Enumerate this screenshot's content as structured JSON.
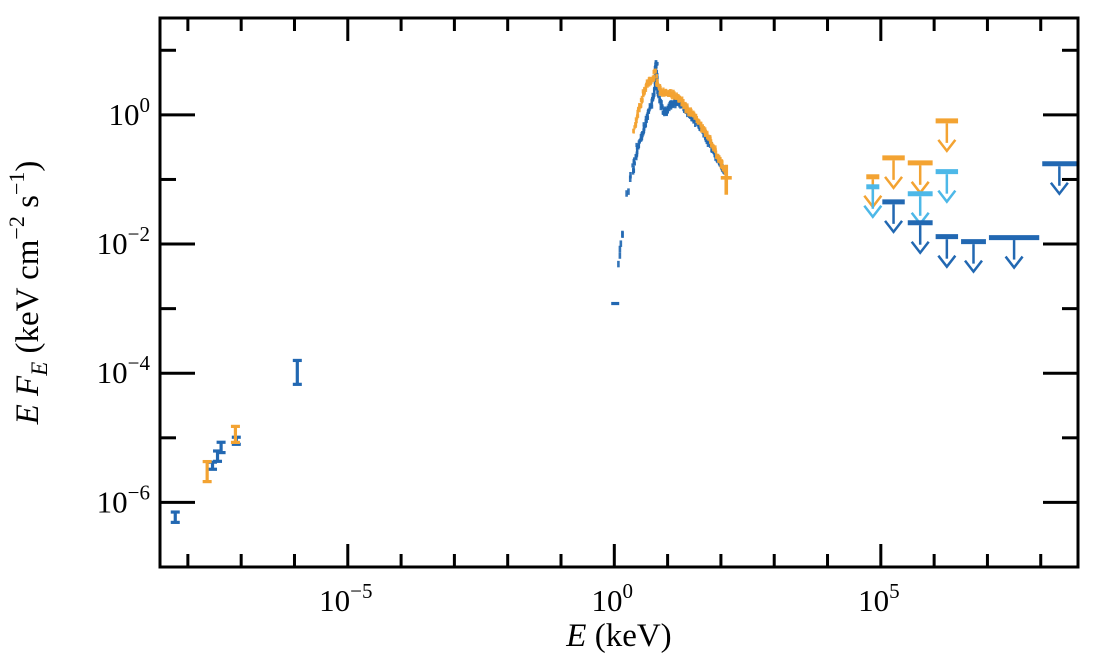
{
  "chart_data": {
    "type": "scatter",
    "title": "",
    "xlabel_tokens": [
      {
        "text": "E",
        "style": "italic"
      },
      {
        "text": " (keV)",
        "style": "normal"
      }
    ],
    "ylabel_tokens": [
      {
        "text": "E F",
        "style": "italic"
      },
      {
        "text": "E",
        "style": "italic_sub"
      },
      {
        "text": " (keV cm",
        "style": "normal"
      },
      {
        "text": "−2",
        "style": "sup"
      },
      {
        "text": " s",
        "style": "normal"
      },
      {
        "text": "−1",
        "style": "sup"
      },
      {
        "text": ")",
        "style": "normal"
      }
    ],
    "xscale": "log",
    "yscale": "log",
    "xlim": [
      3e-09,
      500000000.0
    ],
    "ylim": [
      1e-07,
      31.6
    ],
    "grid": false,
    "legend": null,
    "x_ticks": {
      "minor_exponents": [
        -8,
        -7,
        -6,
        -5,
        -4,
        -3,
        -2,
        -1,
        0,
        1,
        2,
        3,
        4,
        5,
        6,
        7,
        8
      ],
      "major_exponents": [
        -5,
        0,
        5
      ],
      "labeled_exponents": [
        -5,
        0,
        5
      ]
    },
    "y_ticks": {
      "minor_exponents": [
        -6,
        -5,
        -4,
        -3,
        -2,
        -1,
        0,
        1
      ],
      "major_exponents": [
        0,
        -2,
        -4,
        -6
      ],
      "labeled_exponents": [
        0,
        -2,
        -4,
        -6
      ]
    },
    "colors": {
      "blue": "#2268b2",
      "orange": "#f3a332",
      "lightblue": "#4db8e8",
      "axis": "#000000",
      "background": "#ffffff"
    },
    "series": [
      {
        "name": "radio-errorbars-blue",
        "kind": "errorbar",
        "color_key": "blue",
        "points": [
          {
            "E": 5.8e-09,
            "F": 5.9e-07,
            "err_dex": 0.08
          },
          {
            "E": 2.9e-08,
            "F": 3.7e-06,
            "err_dex": 0.055
          },
          {
            "E": 3.6e-08,
            "F": 5.2e-06,
            "err_dex": 0.08
          },
          {
            "E": 4.2e-08,
            "F": 7.1e-06,
            "err_dex": 0.08
          },
          {
            "E": 8.1e-08,
            "F": 9e-06,
            "err_dex": 0.055
          },
          {
            "E": 1.13e-06,
            "F": 0.000103,
            "err_dex": 0.185
          }
        ]
      },
      {
        "name": "radio-errorbars-orange",
        "kind": "errorbar",
        "color_key": "orange",
        "points": [
          {
            "E": 2.3e-08,
            "F": 3e-06,
            "err_dex": 0.155
          },
          {
            "E": 7.8e-08,
            "F": 1.13e-05,
            "err_dex": 0.124
          }
        ]
      },
      {
        "name": "xray-spectrum-blue",
        "kind": "cloud",
        "color_key": "blue",
        "detached_point": {
          "E": 1.04,
          "F": 0.0012
        },
        "spike": {
          "E": 6.1,
          "F_base": 2.6,
          "F_top": 6.6,
          "n_points": 55
        },
        "curve": [
          [
            1.24,
            0.0053
          ],
          [
            1.35,
            0.0105
          ],
          [
            1.48,
            0.0207
          ],
          [
            1.61,
            0.0366
          ],
          [
            1.75,
            0.056
          ],
          [
            1.91,
            0.08
          ],
          [
            2.18,
            0.136
          ],
          [
            2.48,
            0.224
          ],
          [
            2.94,
            0.369
          ],
          [
            3.5,
            0.586
          ],
          [
            4.16,
            0.931
          ],
          [
            4.94,
            1.48
          ],
          [
            5.62,
            2.19
          ],
          [
            6.01,
            2.91
          ],
          [
            6.41,
            2.61
          ],
          [
            6.98,
            1.83
          ],
          [
            7.96,
            1.19
          ],
          [
            9.06,
            1.11
          ],
          [
            10.3,
            1.28
          ],
          [
            12.2,
            1.48
          ],
          [
            14.6,
            1.59
          ],
          [
            17.3,
            1.48
          ],
          [
            20.6,
            1.28
          ],
          [
            24.4,
            1.07
          ],
          [
            29.0,
            0.899
          ],
          [
            34.5,
            0.78
          ],
          [
            39.4,
            0.676
          ],
          [
            48.8,
            0.508
          ],
          [
            60.5,
            0.369
          ],
          [
            75.2,
            0.259
          ],
          [
            93.3,
            0.181
          ],
          [
            111,
            0.141
          ],
          [
            126,
            0.118
          ]
        ]
      },
      {
        "name": "xray-spectrum-orange",
        "kind": "cloud",
        "color_key": "orange",
        "end_cross": {
          "E": 126,
          "F": 0.106,
          "F_lo": 0.058,
          "F_hi": 0.169
        },
        "curve": [
          [
            2.37,
            0.586
          ],
          [
            2.7,
            1.0
          ],
          [
            3.21,
            1.59
          ],
          [
            3.66,
            2.26
          ],
          [
            4.16,
            2.91
          ],
          [
            4.73,
            3.36
          ],
          [
            5.4,
            3.73
          ],
          [
            5.88,
            4.62
          ],
          [
            6.41,
            2.91
          ],
          [
            7.62,
            2.27
          ],
          [
            9.06,
            2.11
          ],
          [
            10.8,
            2.19
          ],
          [
            12.8,
            2.11
          ],
          [
            15.2,
            1.9
          ],
          [
            18.1,
            1.64
          ],
          [
            21.5,
            1.38
          ],
          [
            25.5,
            1.15
          ],
          [
            31.7,
            0.931
          ],
          [
            39.4,
            0.752
          ],
          [
            48.8,
            0.566
          ],
          [
            60.5,
            0.426
          ],
          [
            75.2,
            0.298
          ],
          [
            93.3,
            0.201
          ],
          [
            111,
            0.152
          ],
          [
            126,
            0.122
          ]
        ]
      },
      {
        "name": "gamma-upper-limits-orange",
        "kind": "upperlimits",
        "color_key": "orange",
        "limits": [
          {
            "E_min": 50000.0,
            "E_max": 100000.0,
            "F": 0.11
          },
          {
            "E_min": 100000.0,
            "E_max": 300000.0,
            "F": 0.216
          },
          {
            "E_min": 300000.0,
            "E_max": 1000000.0,
            "F": 0.181
          },
          {
            "E_min": 1000000.0,
            "E_max": 3000000.0,
            "F": 0.807
          }
        ]
      },
      {
        "name": "gamma-upper-limits-lightblue",
        "kind": "upperlimits",
        "color_key": "lightblue",
        "limits": [
          {
            "E_min": 50000.0,
            "E_max": 100000.0,
            "F": 0.077
          },
          {
            "E_min": 300000.0,
            "E_max": 1000000.0,
            "F": 0.06
          },
          {
            "E_min": 1000000.0,
            "E_max": 3000000.0,
            "F": 0.132
          }
        ]
      },
      {
        "name": "gamma-upper-limits-blue",
        "kind": "upperlimits",
        "color_key": "blue",
        "limits": [
          {
            "E_min": 100000.0,
            "E_max": 300000.0,
            "F": 0.045
          },
          {
            "E_min": 300000.0,
            "E_max": 1000000.0,
            "F": 0.0214
          },
          {
            "E_min": 1000000.0,
            "E_max": 3000000.0,
            "F": 0.013
          },
          {
            "E_min": 3000000.0,
            "E_max": 10000000.0,
            "F": 0.0109
          },
          {
            "E_min": 10000000.0,
            "E_max": 100000000.0,
            "F": 0.0126
          },
          {
            "E_min": 100000000.0,
            "E_max": 500000000.0,
            "F": 0.175
          }
        ]
      }
    ]
  }
}
